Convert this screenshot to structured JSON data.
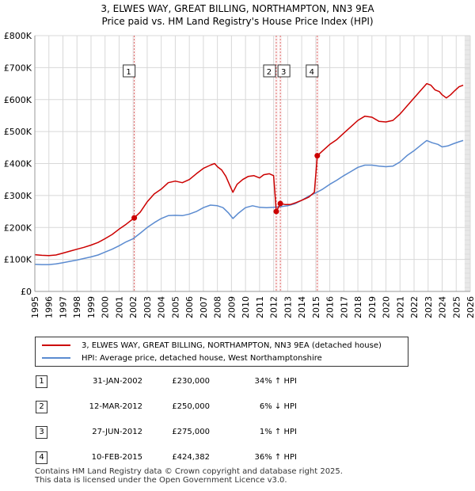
{
  "title_line1": "3, ELWES WAY, GREAT BILLING, NORTHAMPTON, NN3 9EA",
  "title_line2": "Price paid vs. HM Land Registry's House Price Index (HPI)",
  "colors": {
    "property": "#cc0000",
    "hpi": "#5b8bd0",
    "future_band": "#e8e8e8",
    "grid": "#d8d8d8"
  },
  "chart_data": {
    "type": "line",
    "x_range": [
      1995,
      2026
    ],
    "y_range": [
      0,
      800000
    ],
    "y_ticks": [
      {
        "value": 0,
        "label": "£0"
      },
      {
        "value": 100000,
        "label": "£100K"
      },
      {
        "value": 200000,
        "label": "£200K"
      },
      {
        "value": 300000,
        "label": "£300K"
      },
      {
        "value": 400000,
        "label": "£400K"
      },
      {
        "value": 500000,
        "label": "£500K"
      },
      {
        "value": 600000,
        "label": "£600K"
      },
      {
        "value": 700000,
        "label": "£700K"
      },
      {
        "value": 800000,
        "label": "£800K"
      }
    ],
    "x_ticks": [
      "1995",
      "1996",
      "1997",
      "1998",
      "1999",
      "2000",
      "2001",
      "2002",
      "2003",
      "2004",
      "2005",
      "2006",
      "2007",
      "2008",
      "2009",
      "2010",
      "2011",
      "2012",
      "2013",
      "2014",
      "2015",
      "2016",
      "2017",
      "2018",
      "2019",
      "2020",
      "2021",
      "2022",
      "2023",
      "2024",
      "2025",
      "2026"
    ],
    "future_from": 2025.6,
    "series": [
      {
        "name": "3, ELWES WAY, GREAT BILLING, NORTHAMPTON, NN3 9EA (detached house)",
        "color": "#cc0000",
        "points": [
          [
            1995.0,
            115000
          ],
          [
            1995.5,
            113000
          ],
          [
            1996.0,
            112000
          ],
          [
            1996.5,
            114000
          ],
          [
            1997.0,
            120000
          ],
          [
            1997.5,
            126000
          ],
          [
            1998.0,
            132000
          ],
          [
            1998.5,
            138000
          ],
          [
            1999.0,
            145000
          ],
          [
            1999.5,
            153000
          ],
          [
            2000.0,
            165000
          ],
          [
            2000.5,
            178000
          ],
          [
            2001.0,
            195000
          ],
          [
            2001.5,
            210000
          ],
          [
            2002.08,
            230000
          ],
          [
            2002.5,
            248000
          ],
          [
            2003.0,
            280000
          ],
          [
            2003.5,
            305000
          ],
          [
            2004.0,
            320000
          ],
          [
            2004.5,
            340000
          ],
          [
            2005.0,
            345000
          ],
          [
            2005.5,
            340000
          ],
          [
            2006.0,
            350000
          ],
          [
            2006.5,
            368000
          ],
          [
            2007.0,
            385000
          ],
          [
            2007.5,
            395000
          ],
          [
            2007.8,
            400000
          ],
          [
            2008.0,
            390000
          ],
          [
            2008.3,
            380000
          ],
          [
            2008.6,
            360000
          ],
          [
            2008.9,
            330000
          ],
          [
            2009.1,
            310000
          ],
          [
            2009.4,
            335000
          ],
          [
            2009.8,
            350000
          ],
          [
            2010.2,
            360000
          ],
          [
            2010.6,
            362000
          ],
          [
            2011.0,
            355000
          ],
          [
            2011.3,
            365000
          ],
          [
            2011.7,
            368000
          ],
          [
            2012.0,
            362000
          ],
          [
            2012.19,
            250000
          ],
          [
            2012.48,
            275000
          ],
          [
            2012.8,
            272000
          ],
          [
            2013.2,
            272000
          ],
          [
            2013.6,
            278000
          ],
          [
            2014.0,
            285000
          ],
          [
            2014.5,
            295000
          ],
          [
            2014.9,
            310000
          ],
          [
            2015.11,
            424382
          ],
          [
            2015.5,
            440000
          ],
          [
            2016.0,
            460000
          ],
          [
            2016.5,
            475000
          ],
          [
            2017.0,
            495000
          ],
          [
            2017.5,
            515000
          ],
          [
            2018.0,
            535000
          ],
          [
            2018.5,
            548000
          ],
          [
            2019.0,
            545000
          ],
          [
            2019.5,
            532000
          ],
          [
            2020.0,
            530000
          ],
          [
            2020.5,
            535000
          ],
          [
            2021.0,
            555000
          ],
          [
            2021.5,
            580000
          ],
          [
            2022.0,
            605000
          ],
          [
            2022.5,
            630000
          ],
          [
            2022.9,
            650000
          ],
          [
            2023.2,
            645000
          ],
          [
            2023.5,
            630000
          ],
          [
            2023.8,
            625000
          ],
          [
            2024.0,
            615000
          ],
          [
            2024.3,
            605000
          ],
          [
            2024.6,
            615000
          ],
          [
            2024.9,
            628000
          ],
          [
            2025.2,
            640000
          ],
          [
            2025.5,
            645000
          ]
        ]
      },
      {
        "name": "HPI: Average price, detached house, West Northamptonshire",
        "color": "#5b8bd0",
        "points": [
          [
            1995.0,
            85000
          ],
          [
            1995.5,
            84000
          ],
          [
            1996.0,
            84000
          ],
          [
            1996.5,
            86000
          ],
          [
            1997.0,
            90000
          ],
          [
            1997.5,
            94000
          ],
          [
            1998.0,
            98000
          ],
          [
            1998.5,
            103000
          ],
          [
            1999.0,
            108000
          ],
          [
            1999.5,
            114000
          ],
          [
            2000.0,
            123000
          ],
          [
            2000.5,
            132000
          ],
          [
            2001.0,
            143000
          ],
          [
            2001.5,
            155000
          ],
          [
            2002.0,
            165000
          ],
          [
            2002.5,
            182000
          ],
          [
            2003.0,
            200000
          ],
          [
            2003.5,
            215000
          ],
          [
            2004.0,
            228000
          ],
          [
            2004.5,
            237000
          ],
          [
            2005.0,
            238000
          ],
          [
            2005.5,
            237000
          ],
          [
            2006.0,
            242000
          ],
          [
            2006.5,
            250000
          ],
          [
            2007.0,
            262000
          ],
          [
            2007.5,
            270000
          ],
          [
            2008.0,
            268000
          ],
          [
            2008.4,
            262000
          ],
          [
            2008.8,
            245000
          ],
          [
            2009.1,
            228000
          ],
          [
            2009.5,
            245000
          ],
          [
            2010.0,
            262000
          ],
          [
            2010.5,
            268000
          ],
          [
            2011.0,
            263000
          ],
          [
            2011.5,
            262000
          ],
          [
            2012.0,
            263000
          ],
          [
            2012.5,
            265000
          ],
          [
            2013.0,
            268000
          ],
          [
            2013.5,
            274000
          ],
          [
            2014.0,
            285000
          ],
          [
            2014.5,
            298000
          ],
          [
            2015.0,
            308000
          ],
          [
            2015.5,
            320000
          ],
          [
            2016.0,
            335000
          ],
          [
            2016.5,
            348000
          ],
          [
            2017.0,
            362000
          ],
          [
            2017.5,
            375000
          ],
          [
            2018.0,
            388000
          ],
          [
            2018.5,
            395000
          ],
          [
            2019.0,
            395000
          ],
          [
            2019.5,
            392000
          ],
          [
            2020.0,
            390000
          ],
          [
            2020.5,
            392000
          ],
          [
            2021.0,
            405000
          ],
          [
            2021.5,
            425000
          ],
          [
            2022.0,
            440000
          ],
          [
            2022.5,
            458000
          ],
          [
            2022.9,
            472000
          ],
          [
            2023.3,
            465000
          ],
          [
            2023.7,
            460000
          ],
          [
            2024.0,
            452000
          ],
          [
            2024.4,
            455000
          ],
          [
            2024.8,
            462000
          ],
          [
            2025.2,
            468000
          ],
          [
            2025.5,
            472000
          ]
        ]
      }
    ],
    "sales": [
      {
        "id": "1",
        "x": 2002.08,
        "price": 230000
      },
      {
        "id": "2",
        "x": 2012.19,
        "price": 250000
      },
      {
        "id": "3",
        "x": 2012.48,
        "price": 275000
      },
      {
        "id": "4",
        "x": 2015.11,
        "price": 424382
      }
    ]
  },
  "legend": {
    "property_label": "3, ELWES WAY, GREAT BILLING, NORTHAMPTON, NN3 9EA (detached house)",
    "hpi_label": "HPI: Average price, detached house, West Northamptonshire"
  },
  "transactions": [
    {
      "id": "1",
      "date": "31-JAN-2002",
      "price": "£230,000",
      "hpi": "34% ↑ HPI"
    },
    {
      "id": "2",
      "date": "12-MAR-2012",
      "price": "£250,000",
      "hpi": "6% ↓ HPI"
    },
    {
      "id": "3",
      "date": "27-JUN-2012",
      "price": "£275,000",
      "hpi": "1% ↑ HPI"
    },
    {
      "id": "4",
      "date": "10-FEB-2015",
      "price": "£424,382",
      "hpi": "36% ↑ HPI"
    }
  ],
  "footer_line1": "Contains HM Land Registry data © Crown copyright and database right 2025.",
  "footer_line2": "This data is licensed under the Open Government Licence v3.0."
}
